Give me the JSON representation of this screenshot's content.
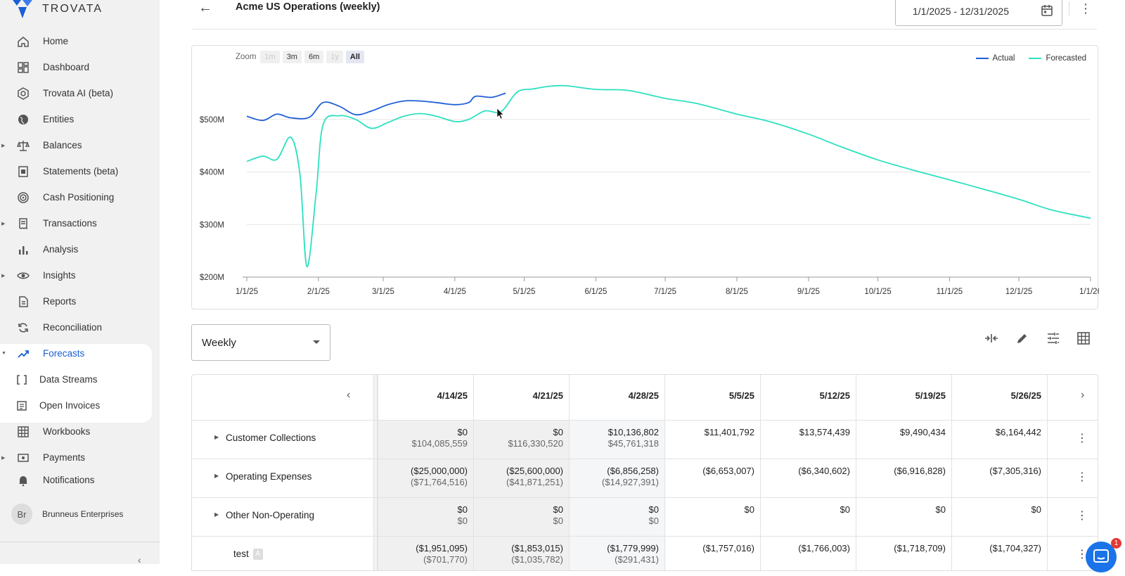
{
  "app": {
    "name": "TROVATA",
    "brand_color": "#1a5fd6"
  },
  "sidebar": {
    "items": [
      {
        "label": "Home",
        "icon": "home-icon"
      },
      {
        "label": "Dashboard",
        "icon": "dashboard-icon"
      },
      {
        "label": "Trovata AI (beta)",
        "icon": "ai-icon"
      },
      {
        "label": "Entities",
        "icon": "globe-icon"
      },
      {
        "label": "Balances",
        "icon": "scale-icon",
        "expandable": true
      },
      {
        "label": "Statements (beta)",
        "icon": "statement-icon"
      },
      {
        "label": "Cash Positioning",
        "icon": "target-icon"
      },
      {
        "label": "Transactions",
        "icon": "receipt-icon",
        "expandable": true
      },
      {
        "label": "Analysis",
        "icon": "bar-chart-icon"
      },
      {
        "label": "Insights",
        "icon": "eye-icon",
        "expandable": true
      },
      {
        "label": "Reports",
        "icon": "report-icon"
      },
      {
        "label": "Reconciliation",
        "icon": "sync-icon"
      },
      {
        "label": "Forecasts",
        "icon": "trending-up-icon",
        "active": true,
        "expanded": true
      },
      {
        "label": "Data Streams",
        "icon": "brackets-icon",
        "sub": true
      },
      {
        "label": "Open Invoices",
        "icon": "invoice-icon",
        "sub": true
      },
      {
        "label": "Workbooks",
        "icon": "grid-icon"
      },
      {
        "label": "Payments",
        "icon": "payment-icon",
        "expandable": true
      },
      {
        "label": "Notifications",
        "icon": "bell-icon"
      }
    ],
    "org": {
      "initials": "Br",
      "name": "Brunneus Enterprises"
    },
    "collapse_label": "‹"
  },
  "header": {
    "back_label": "←",
    "title": "Acme US Operations (weekly)",
    "date_range": "1/1/2025 - 12/31/2025",
    "menu_label": "⋮"
  },
  "chart": {
    "zoom_label": "Zoom",
    "zoom_options": [
      {
        "label": "1m",
        "state": "disabled"
      },
      {
        "label": "3m",
        "state": "enabled"
      },
      {
        "label": "6m",
        "state": "enabled"
      },
      {
        "label": "1y",
        "state": "disabled"
      },
      {
        "label": "All",
        "state": "selected"
      }
    ],
    "colors": {
      "actual": "#1f5fd6",
      "forecasted": "#2de0c0"
    }
  },
  "chart_data": {
    "type": "line",
    "ylim": [
      200,
      600
    ],
    "yticks": [
      {
        "value": 200,
        "label": "$200M"
      },
      {
        "value": 300,
        "label": "$300M"
      },
      {
        "value": 400,
        "label": "$400M"
      },
      {
        "value": 500,
        "label": "$500M"
      }
    ],
    "xlim": [
      "2025-01-01",
      "2026-01-01"
    ],
    "xticks": [
      {
        "date": "2025-01-01",
        "label": "1/1/25"
      },
      {
        "date": "2025-02-01",
        "label": "2/1/25"
      },
      {
        "date": "2025-03-01",
        "label": "3/1/25"
      },
      {
        "date": "2025-04-01",
        "label": "4/1/25"
      },
      {
        "date": "2025-05-01",
        "label": "5/1/25"
      },
      {
        "date": "2025-06-01",
        "label": "6/1/25"
      },
      {
        "date": "2025-07-01",
        "label": "7/1/25"
      },
      {
        "date": "2025-08-01",
        "label": "8/1/25"
      },
      {
        "date": "2025-09-01",
        "label": "9/1/25"
      },
      {
        "date": "2025-10-01",
        "label": "10/1/25"
      },
      {
        "date": "2025-11-01",
        "label": "11/1/25"
      },
      {
        "date": "2025-12-01",
        "label": "12/1/25"
      },
      {
        "date": "2026-01-01",
        "label": "1/1/26"
      }
    ],
    "series": [
      {
        "name": "Actual",
        "points": [
          [
            "2025-01-01",
            506
          ],
          [
            "2025-01-08",
            498
          ],
          [
            "2025-01-14",
            510
          ],
          [
            "2025-01-20",
            503
          ],
          [
            "2025-01-28",
            504
          ],
          [
            "2025-02-03",
            532
          ],
          [
            "2025-02-10",
            525
          ],
          [
            "2025-02-17",
            509
          ],
          [
            "2025-02-24",
            516
          ],
          [
            "2025-03-03",
            528
          ],
          [
            "2025-03-10",
            535
          ],
          [
            "2025-03-17",
            535
          ],
          [
            "2025-03-24",
            532
          ],
          [
            "2025-04-01",
            528
          ],
          [
            "2025-04-07",
            532
          ],
          [
            "2025-04-10",
            544
          ],
          [
            "2025-04-17",
            542
          ],
          [
            "2025-04-23",
            550
          ]
        ]
      },
      {
        "name": "Forecasted",
        "points": [
          [
            "2025-01-01",
            420
          ],
          [
            "2025-01-08",
            430
          ],
          [
            "2025-01-14",
            424
          ],
          [
            "2025-01-20",
            466
          ],
          [
            "2025-01-24",
            395
          ],
          [
            "2025-01-27",
            220
          ],
          [
            "2025-01-31",
            360
          ],
          [
            "2025-02-03",
            490
          ],
          [
            "2025-02-10",
            507
          ],
          [
            "2025-02-17",
            500
          ],
          [
            "2025-02-24",
            483
          ],
          [
            "2025-03-03",
            494
          ],
          [
            "2025-03-10",
            506
          ],
          [
            "2025-03-17",
            511
          ],
          [
            "2025-03-24",
            506
          ],
          [
            "2025-04-01",
            496
          ],
          [
            "2025-04-07",
            500
          ],
          [
            "2025-04-14",
            516
          ],
          [
            "2025-04-21",
            515
          ],
          [
            "2025-04-28",
            552
          ],
          [
            "2025-05-05",
            558
          ],
          [
            "2025-05-12",
            563
          ],
          [
            "2025-05-19",
            564
          ],
          [
            "2025-06-01",
            557
          ],
          [
            "2025-06-15",
            555
          ],
          [
            "2025-07-01",
            540
          ],
          [
            "2025-07-15",
            530
          ],
          [
            "2025-08-01",
            510
          ],
          [
            "2025-08-15",
            496
          ],
          [
            "2025-09-01",
            472
          ],
          [
            "2025-09-15",
            448
          ],
          [
            "2025-10-01",
            423
          ],
          [
            "2025-10-15",
            405
          ],
          [
            "2025-11-01",
            385
          ],
          [
            "2025-11-15",
            368
          ],
          [
            "2025-12-01",
            348
          ],
          [
            "2025-12-15",
            328
          ],
          [
            "2026-01-01",
            312
          ]
        ]
      }
    ]
  },
  "controls": {
    "period": "Weekly",
    "tools": [
      "compress-icon",
      "pencil-icon",
      "tune-icon",
      "grid-icon"
    ]
  },
  "table": {
    "prev_label": "‹",
    "next_label": "›",
    "columns": [
      "4/14/25",
      "4/21/25",
      "4/28/25",
      "5/5/25",
      "5/12/25",
      "5/19/25",
      "5/26/25"
    ],
    "rows": [
      {
        "label": "Customer Collections",
        "expandable": true,
        "values": [
          "$0",
          "$0",
          "$10,136,802",
          "$11,401,792",
          "$13,574,439",
          "$9,490,434",
          "$6,164,442"
        ],
        "secondary": [
          "$104,085,559",
          "$116,330,520",
          "$45,761,318",
          "",
          "",
          "",
          ""
        ]
      },
      {
        "label": "Operating Expenses",
        "expandable": true,
        "values": [
          "($25,000,000)",
          "($25,600,000)",
          "($6,856,258)",
          "($6,653,007)",
          "($6,340,602)",
          "($6,916,828)",
          "($7,305,316)"
        ],
        "secondary": [
          "($71,764,516)",
          "($41,871,251)",
          "($14,927,391)",
          "",
          "",
          "",
          ""
        ]
      },
      {
        "label": "Other Non-Operating",
        "expandable": true,
        "values": [
          "$0",
          "$0",
          "$0",
          "$0",
          "$0",
          "$0",
          "$0"
        ],
        "secondary": [
          "$0",
          "$0",
          "$0",
          "",
          "",
          "",
          ""
        ]
      },
      {
        "label": "test",
        "tag": "A",
        "expandable": false,
        "values": [
          "($1,951,095)",
          "($1,853,015)",
          "($1,779,999)",
          "($1,757,016)",
          "($1,766,003)",
          "($1,718,709)",
          "($1,704,327)"
        ],
        "secondary": [
          "($701,770)",
          "($1,035,782)",
          "($291,431)",
          "",
          "",
          "",
          ""
        ]
      }
    ]
  },
  "chat": {
    "badge": "1"
  }
}
